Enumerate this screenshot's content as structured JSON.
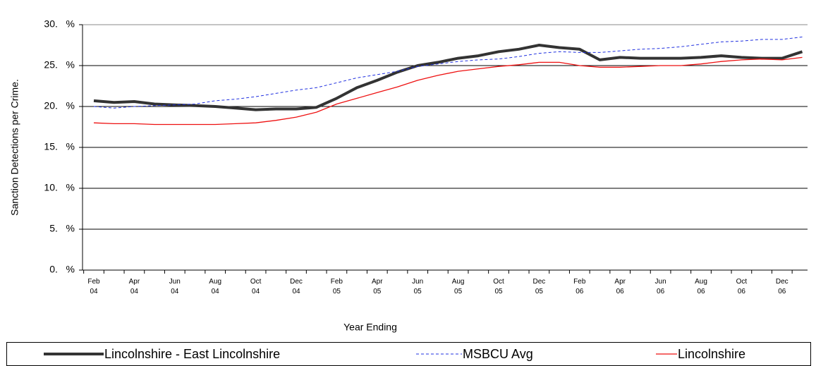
{
  "chart_data": {
    "type": "line",
    "y_label": "Sanction Detections per Crime.",
    "x_label": "Year Ending",
    "categories": [
      "Feb 04",
      null,
      "Apr 04",
      null,
      "Jun 04",
      null,
      "Aug 04",
      null,
      "Oct 04",
      null,
      "Dec 04",
      null,
      "Feb 05",
      null,
      "Apr 05",
      null,
      "Jun 05",
      null,
      "Aug 05",
      null,
      "Oct 05",
      null,
      "Dec 05",
      null,
      "Feb 06",
      null,
      "Apr 06",
      null,
      "Jun 06",
      null,
      "Aug 06",
      null,
      "Oct 06",
      null,
      "Dec 06",
      null
    ],
    "series": [
      {
        "name": "Lincolnshire - East Lincolnshire",
        "color": "#333333",
        "width": 4,
        "dash": false,
        "values": [
          20.7,
          20.5,
          20.6,
          20.3,
          20.2,
          20.1,
          20.0,
          19.8,
          19.6,
          19.7,
          19.7,
          19.9,
          21.0,
          22.3,
          23.2,
          24.2,
          25.0,
          25.4,
          25.9,
          26.2,
          26.7,
          27.0,
          27.5,
          27.2,
          27.0,
          25.7,
          26.0,
          25.9,
          25.9,
          25.9,
          26.0,
          26.2,
          26.0,
          25.9,
          25.9,
          26.7
        ]
      },
      {
        "name": "MSBCU Avg",
        "color": "#2030e0",
        "width": 1,
        "dash": true,
        "values": [
          20.0,
          19.8,
          20.0,
          20.1,
          20.2,
          20.3,
          20.7,
          20.9,
          21.2,
          21.6,
          22.0,
          22.3,
          22.9,
          23.5,
          23.9,
          24.3,
          24.9,
          25.2,
          25.5,
          25.7,
          25.8,
          26.1,
          26.5,
          26.7,
          26.6,
          26.6,
          26.8,
          27.0,
          27.1,
          27.3,
          27.6,
          27.9,
          28.0,
          28.2,
          28.2,
          28.5
        ]
      },
      {
        "name": "Lincolnshire",
        "color": "#ee1111",
        "width": 1.3,
        "dash": false,
        "values": [
          18.0,
          17.9,
          17.9,
          17.8,
          17.8,
          17.8,
          17.8,
          17.9,
          18.0,
          18.3,
          18.7,
          19.3,
          20.3,
          21.0,
          21.7,
          22.4,
          23.2,
          23.8,
          24.3,
          24.6,
          24.9,
          25.1,
          25.4,
          25.4,
          25.0,
          24.8,
          24.8,
          24.9,
          25.0,
          25.0,
          25.2,
          25.5,
          25.7,
          25.8,
          25.7,
          26.0
        ]
      }
    ],
    "ylim": [
      0,
      30
    ],
    "yticks": [
      {
        "value": 0,
        "label": "0.   %"
      },
      {
        "value": 5,
        "label": "5.   %"
      },
      {
        "value": 10,
        "label": "10.   %"
      },
      {
        "value": 15,
        "label": "15.   %"
      },
      {
        "value": 20,
        "label": "20.   %"
      },
      {
        "value": 25,
        "label": "25.   %"
      },
      {
        "value": 30,
        "label": "30.   %"
      }
    ],
    "grid": true,
    "legend": "bottom"
  }
}
